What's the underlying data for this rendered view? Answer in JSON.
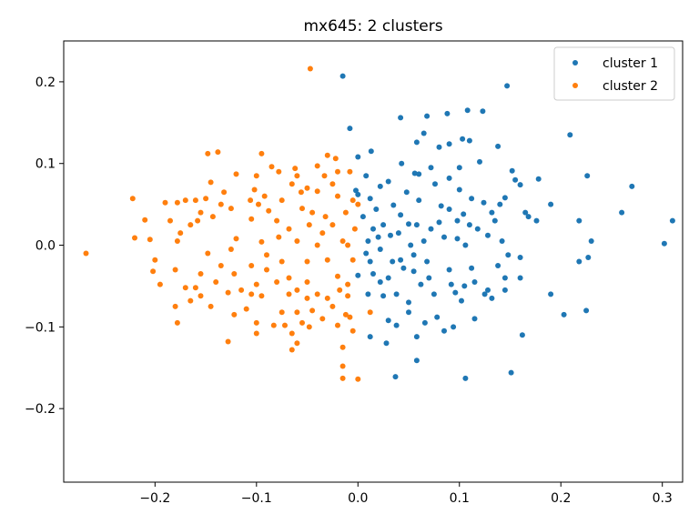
{
  "chart_data": {
    "type": "scatter",
    "title": "mx645: 2 clusters",
    "xlabel": "",
    "ylabel": "",
    "xlim": [
      -0.29,
      0.32
    ],
    "ylim": [
      -0.29,
      0.25
    ],
    "xticks": [
      -0.2,
      -0.1,
      0.0,
      0.1,
      0.2,
      0.3
    ],
    "xtick_labels": [
      "−0.2",
      "−0.1",
      "0.0",
      "0.1",
      "0.2",
      "0.3"
    ],
    "yticks": [
      -0.2,
      -0.1,
      0.0,
      0.1,
      0.2
    ],
    "ytick_labels": [
      "−0.2",
      "−0.1",
      "0.0",
      "0.1",
      "0.2"
    ],
    "grid": false,
    "legend_position": "top-right",
    "series": [
      {
        "name": "cluster 1",
        "color": "#1f77b4",
        "points": [
          [
            -0.015,
            0.207
          ],
          [
            0.147,
            0.195
          ],
          [
            0.042,
            0.156
          ],
          [
            0.068,
            0.158
          ],
          [
            0.088,
            0.161
          ],
          [
            0.108,
            0.165
          ],
          [
            0.123,
            0.164
          ],
          [
            -0.008,
            0.143
          ],
          [
            0.065,
            0.137
          ],
          [
            0.209,
            0.135
          ],
          [
            0.103,
            0.13
          ],
          [
            0.11,
            0.128
          ],
          [
            0.058,
            0.126
          ],
          [
            0.08,
            0.12
          ],
          [
            0.09,
            0.124
          ],
          [
            0.138,
            0.121
          ],
          [
            0.013,
            0.115
          ],
          [
            0.0,
            0.108
          ],
          [
            0.043,
            0.1
          ],
          [
            0.056,
            0.088
          ],
          [
            0.06,
            0.087
          ],
          [
            0.072,
            0.095
          ],
          [
            0.1,
            0.095
          ],
          [
            0.12,
            0.102
          ],
          [
            0.152,
            0.091
          ],
          [
            0.155,
            0.08
          ],
          [
            0.16,
            0.074
          ],
          [
            0.178,
            0.081
          ],
          [
            0.226,
            0.085
          ],
          [
            0.27,
            0.072
          ],
          [
            0.008,
            0.085
          ],
          [
            0.022,
            0.072
          ],
          [
            0.03,
            0.078
          ],
          [
            0.048,
            0.065
          ],
          [
            0.076,
            0.075
          ],
          [
            0.09,
            0.082
          ],
          [
            0.1,
            0.068
          ],
          [
            0.112,
            0.057
          ],
          [
            0.14,
            0.05
          ],
          [
            0.145,
            0.058
          ],
          [
            0.165,
            0.04
          ],
          [
            0.19,
            0.05
          ],
          [
            0.0,
            0.062
          ],
          [
            -0.002,
            0.067
          ],
          [
            0.012,
            0.057
          ],
          [
            0.018,
            0.044
          ],
          [
            0.035,
            0.049
          ],
          [
            0.06,
            0.055
          ],
          [
            0.082,
            0.048
          ],
          [
            0.09,
            0.044
          ],
          [
            0.104,
            0.038
          ],
          [
            0.124,
            0.052
          ],
          [
            0.132,
            0.04
          ],
          [
            0.168,
            0.035
          ],
          [
            0.176,
            0.03
          ],
          [
            0.218,
            0.03
          ],
          [
            0.26,
            0.04
          ],
          [
            0.31,
            0.03
          ],
          [
            0.005,
            0.035
          ],
          [
            0.015,
            0.02
          ],
          [
            0.025,
            0.025
          ],
          [
            0.042,
            0.037
          ],
          [
            0.05,
            0.026
          ],
          [
            0.058,
            0.025
          ],
          [
            0.072,
            0.02
          ],
          [
            0.08,
            0.028
          ],
          [
            0.098,
            0.03
          ],
          [
            0.11,
            0.025
          ],
          [
            0.118,
            0.02
          ],
          [
            0.128,
            0.012
          ],
          [
            0.135,
            0.03
          ],
          [
            0.142,
            0.005
          ],
          [
            0.23,
            0.005
          ],
          [
            0.302,
            0.002
          ],
          [
            0.01,
            0.005
          ],
          [
            0.02,
            0.01
          ],
          [
            0.032,
            0.012
          ],
          [
            0.04,
            0.015
          ],
          [
            0.052,
            0.0
          ],
          [
            0.065,
            0.005
          ],
          [
            0.085,
            0.01
          ],
          [
            0.098,
            0.008
          ],
          [
            0.106,
            0.0
          ],
          [
            0.148,
            -0.012
          ],
          [
            0.008,
            -0.01
          ],
          [
            0.012,
            -0.02
          ],
          [
            0.022,
            -0.005
          ],
          [
            0.034,
            -0.02
          ],
          [
            0.042,
            -0.018
          ],
          [
            0.055,
            -0.012
          ],
          [
            0.068,
            -0.02
          ],
          [
            0.09,
            -0.03
          ],
          [
            0.112,
            -0.028
          ],
          [
            0.138,
            -0.025
          ],
          [
            0.16,
            -0.015
          ],
          [
            0.218,
            -0.02
          ],
          [
            0.227,
            -0.015
          ],
          [
            0.0,
            -0.037
          ],
          [
            0.015,
            -0.035
          ],
          [
            0.022,
            -0.045
          ],
          [
            0.03,
            -0.04
          ],
          [
            0.045,
            -0.028
          ],
          [
            0.055,
            -0.032
          ],
          [
            0.07,
            -0.04
          ],
          [
            0.092,
            -0.048
          ],
          [
            0.105,
            -0.05
          ],
          [
            0.115,
            -0.045
          ],
          [
            0.128,
            -0.055
          ],
          [
            0.145,
            -0.04
          ],
          [
            0.16,
            -0.04
          ],
          [
            0.19,
            -0.06
          ],
          [
            0.01,
            -0.06
          ],
          [
            0.025,
            -0.062
          ],
          [
            0.038,
            -0.06
          ],
          [
            0.05,
            -0.07
          ],
          [
            0.062,
            -0.048
          ],
          [
            0.075,
            -0.06
          ],
          [
            0.096,
            -0.058
          ],
          [
            0.102,
            -0.068
          ],
          [
            0.125,
            -0.06
          ],
          [
            0.132,
            -0.065
          ],
          [
            0.145,
            -0.055
          ],
          [
            0.03,
            -0.092
          ],
          [
            0.05,
            -0.082
          ],
          [
            0.066,
            -0.095
          ],
          [
            0.078,
            -0.088
          ],
          [
            0.094,
            -0.1
          ],
          [
            0.115,
            -0.09
          ],
          [
            0.203,
            -0.085
          ],
          [
            0.225,
            -0.08
          ],
          [
            0.012,
            -0.112
          ],
          [
            0.058,
            -0.112
          ],
          [
            0.038,
            -0.098
          ],
          [
            0.085,
            -0.105
          ],
          [
            0.162,
            -0.11
          ],
          [
            0.028,
            -0.12
          ],
          [
            0.058,
            -0.141
          ],
          [
            0.037,
            -0.161
          ],
          [
            0.106,
            -0.163
          ],
          [
            0.151,
            -0.156
          ]
        ]
      },
      {
        "name": "cluster 2",
        "color": "#ff7f0e",
        "points": [
          [
            -0.047,
            0.216
          ],
          [
            -0.138,
            0.114
          ],
          [
            -0.148,
            0.112
          ],
          [
            -0.095,
            0.112
          ],
          [
            -0.03,
            0.11
          ],
          [
            -0.022,
            0.106
          ],
          [
            -0.04,
            0.097
          ],
          [
            -0.085,
            0.096
          ],
          [
            -0.062,
            0.094
          ],
          [
            -0.078,
            0.09
          ],
          [
            -0.12,
            0.087
          ],
          [
            -0.1,
            0.085
          ],
          [
            -0.02,
            0.09
          ],
          [
            -0.008,
            0.09
          ],
          [
            -0.033,
            0.085
          ],
          [
            -0.06,
            0.085
          ],
          [
            -0.145,
            0.077
          ],
          [
            -0.132,
            0.065
          ],
          [
            -0.102,
            0.068
          ],
          [
            -0.092,
            0.06
          ],
          [
            -0.065,
            0.075
          ],
          [
            -0.05,
            0.07
          ],
          [
            -0.04,
            0.066
          ],
          [
            -0.025,
            0.075
          ],
          [
            -0.17,
            0.055
          ],
          [
            -0.16,
            0.055
          ],
          [
            -0.15,
            0.057
          ],
          [
            -0.135,
            0.05
          ],
          [
            -0.106,
            0.055
          ],
          [
            -0.098,
            0.05
          ],
          [
            -0.075,
            0.055
          ],
          [
            -0.056,
            0.065
          ],
          [
            -0.02,
            0.06
          ],
          [
            -0.005,
            0.055
          ],
          [
            0.0,
            0.05
          ],
          [
            -0.222,
            0.057
          ],
          [
            -0.19,
            0.052
          ],
          [
            -0.178,
            0.052
          ],
          [
            -0.155,
            0.04
          ],
          [
            -0.125,
            0.045
          ],
          [
            -0.088,
            0.042
          ],
          [
            -0.055,
            0.045
          ],
          [
            -0.045,
            0.04
          ],
          [
            -0.032,
            0.035
          ],
          [
            -0.012,
            0.04
          ],
          [
            -0.21,
            0.031
          ],
          [
            -0.185,
            0.03
          ],
          [
            -0.158,
            0.03
          ],
          [
            -0.143,
            0.035
          ],
          [
            -0.105,
            0.032
          ],
          [
            -0.08,
            0.03
          ],
          [
            -0.068,
            0.02
          ],
          [
            -0.048,
            0.025
          ],
          [
            -0.035,
            0.015
          ],
          [
            -0.025,
            0.025
          ],
          [
            -0.003,
            0.02
          ],
          [
            -0.22,
            0.009
          ],
          [
            -0.205,
            0.007
          ],
          [
            -0.175,
            0.015
          ],
          [
            -0.165,
            0.025
          ],
          [
            -0.12,
            0.008
          ],
          [
            -0.095,
            0.004
          ],
          [
            -0.078,
            0.01
          ],
          [
            -0.06,
            0.005
          ],
          [
            -0.04,
            0.0
          ],
          [
            -0.015,
            0.005
          ],
          [
            -0.01,
            0.0
          ],
          [
            -0.268,
            -0.01
          ],
          [
            -0.2,
            -0.018
          ],
          [
            -0.178,
            0.005
          ],
          [
            -0.148,
            -0.01
          ],
          [
            -0.125,
            -0.005
          ],
          [
            -0.105,
            -0.025
          ],
          [
            -0.09,
            -0.012
          ],
          [
            -0.075,
            -0.02
          ],
          [
            -0.05,
            -0.02
          ],
          [
            -0.03,
            -0.018
          ],
          [
            -0.005,
            -0.018
          ],
          [
            -0.202,
            -0.032
          ],
          [
            -0.18,
            -0.03
          ],
          [
            -0.155,
            -0.035
          ],
          [
            -0.135,
            -0.025
          ],
          [
            -0.122,
            -0.035
          ],
          [
            -0.09,
            -0.03
          ],
          [
            -0.068,
            -0.04
          ],
          [
            -0.05,
            -0.045
          ],
          [
            -0.02,
            -0.038
          ],
          [
            -0.01,
            -0.048
          ],
          [
            -0.195,
            -0.048
          ],
          [
            -0.17,
            -0.052
          ],
          [
            -0.16,
            -0.052
          ],
          [
            -0.14,
            -0.045
          ],
          [
            -0.115,
            -0.055
          ],
          [
            -0.1,
            -0.048
          ],
          [
            -0.08,
            -0.045
          ],
          [
            -0.06,
            -0.055
          ],
          [
            -0.04,
            -0.06
          ],
          [
            -0.018,
            -0.055
          ],
          [
            -0.165,
            -0.068
          ],
          [
            -0.155,
            -0.062
          ],
          [
            -0.128,
            -0.058
          ],
          [
            -0.105,
            -0.06
          ],
          [
            -0.095,
            -0.062
          ],
          [
            -0.068,
            -0.06
          ],
          [
            -0.05,
            -0.065
          ],
          [
            -0.03,
            -0.065
          ],
          [
            -0.025,
            -0.075
          ],
          [
            -0.01,
            -0.062
          ],
          [
            -0.18,
            -0.075
          ],
          [
            -0.145,
            -0.075
          ],
          [
            -0.11,
            -0.078
          ],
          [
            -0.075,
            -0.082
          ],
          [
            -0.06,
            -0.082
          ],
          [
            -0.045,
            -0.08
          ],
          [
            -0.012,
            -0.085
          ],
          [
            0.012,
            -0.082
          ],
          [
            -0.178,
            -0.095
          ],
          [
            -0.122,
            -0.085
          ],
          [
            -0.1,
            -0.095
          ],
          [
            -0.083,
            -0.098
          ],
          [
            -0.072,
            -0.098
          ],
          [
            -0.055,
            -0.095
          ],
          [
            -0.035,
            -0.09
          ],
          [
            -0.008,
            -0.088
          ],
          [
            -0.1,
            -0.108
          ],
          [
            -0.065,
            -0.108
          ],
          [
            -0.048,
            -0.1
          ],
          [
            -0.02,
            -0.098
          ],
          [
            -0.005,
            -0.105
          ],
          [
            -0.128,
            -0.118
          ],
          [
            -0.065,
            -0.128
          ],
          [
            -0.06,
            -0.12
          ],
          [
            -0.015,
            -0.125
          ],
          [
            -0.015,
            -0.148
          ],
          [
            -0.015,
            -0.163
          ],
          [
            0.0,
            -0.164
          ]
        ]
      }
    ]
  }
}
